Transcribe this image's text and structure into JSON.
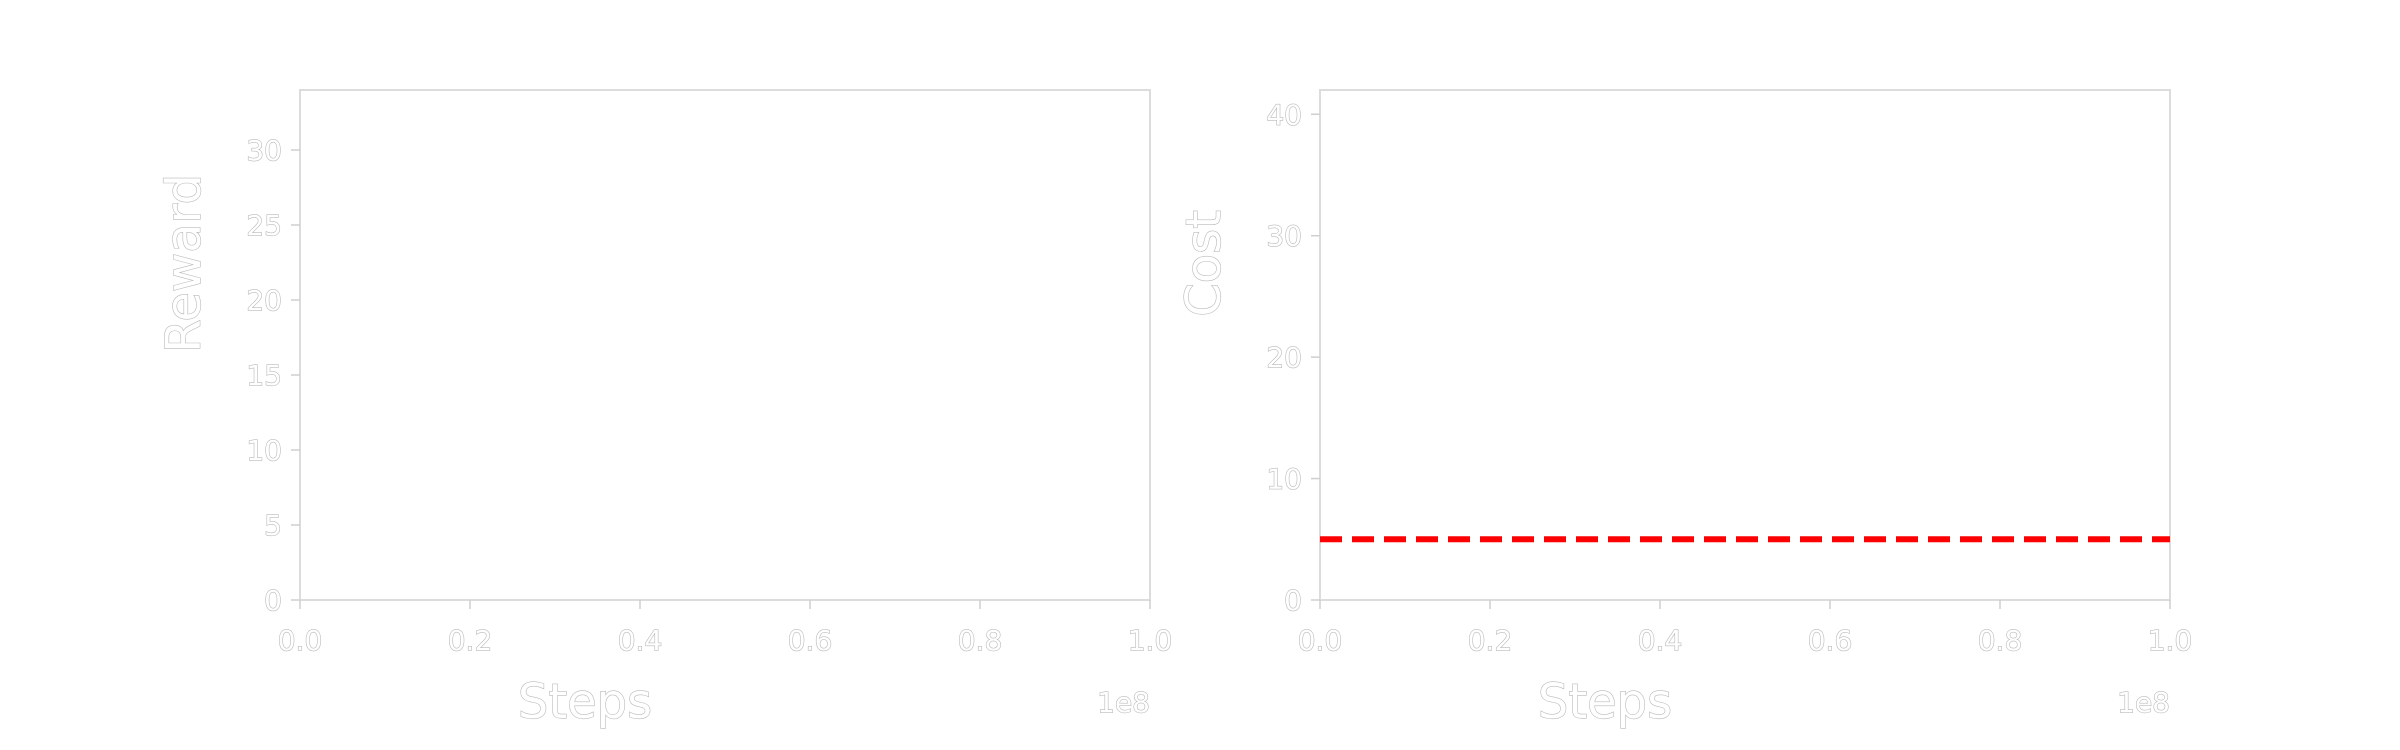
{
  "chart_data": [
    {
      "type": "line",
      "xlabel": "Steps",
      "ylabel": "Reward",
      "x_offset_label": "1e8",
      "xlim": [
        0,
        1.0
      ],
      "ylim": [
        0,
        34
      ],
      "xticks": [
        0.0,
        0.2,
        0.4,
        0.6,
        0.8,
        1.0
      ],
      "xtick_labels": [
        "0.0",
        "0.2",
        "0.4",
        "0.6",
        "0.8",
        "1.0"
      ],
      "yticks": [
        0,
        5,
        10,
        15,
        20,
        25,
        30
      ],
      "ytick_labels": [
        "0",
        "5",
        "10",
        "15",
        "20",
        "25",
        "30"
      ],
      "grid": false,
      "series": [],
      "reference_lines": []
    },
    {
      "type": "line",
      "xlabel": "Steps",
      "ylabel": "Cost",
      "x_offset_label": "1e8",
      "xlim": [
        0,
        1.0
      ],
      "ylim": [
        0,
        42
      ],
      "xticks": [
        0.0,
        0.2,
        0.4,
        0.6,
        0.8,
        1.0
      ],
      "xtick_labels": [
        "0.0",
        "0.2",
        "0.4",
        "0.6",
        "0.8",
        "1.0"
      ],
      "yticks": [
        0,
        10,
        20,
        30,
        40
      ],
      "ytick_labels": [
        "0",
        "10",
        "20",
        "30",
        "40"
      ],
      "grid": false,
      "series": [],
      "reference_lines": [
        {
          "orientation": "horizontal",
          "y": 5,
          "color": "#ff0000",
          "style": "dashed"
        }
      ]
    }
  ]
}
